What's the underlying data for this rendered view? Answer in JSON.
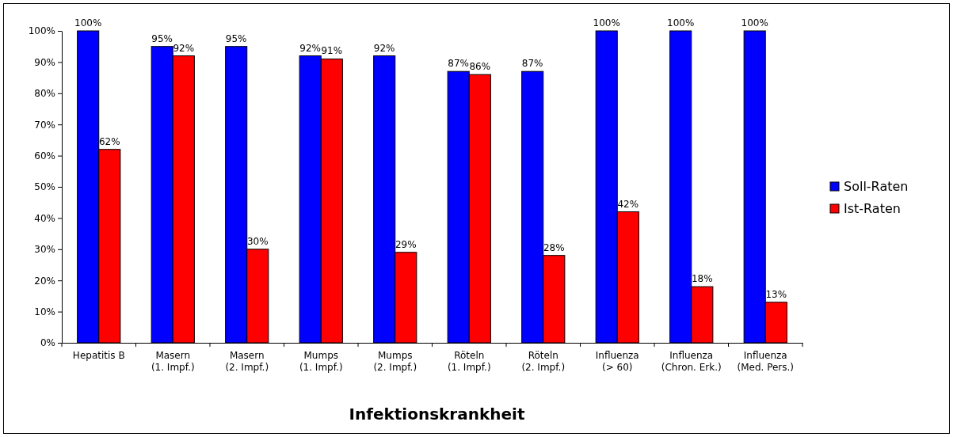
{
  "chart_data": {
    "type": "bar",
    "xlabel": "Infektionskrankheit",
    "categories": [
      "Hepatitis B",
      "Masern\n(1. Impf.)",
      "Masern\n(2. Impf.)",
      "Mumps\n(1. Impf.)",
      "Mumps\n(2. Impf.)",
      "Röteln\n(1. Impf.)",
      "Röteln\n(2. Impf.)",
      "Influenza\n(> 60)",
      "Influenza\n(Chron. Erk.)",
      "Influenza\n(Med. Pers.)"
    ],
    "series": [
      {
        "name": "Soll-Raten",
        "color": "#0000ff",
        "values": [
          100,
          95,
          95,
          92,
          92,
          87,
          87,
          100,
          100,
          100
        ],
        "value_labels": [
          "100%",
          "95%",
          "95%",
          "92%",
          "92%",
          "87%",
          "87%",
          "100%",
          "100%",
          "100%"
        ]
      },
      {
        "name": "Ist-Raten",
        "color": "#ff0000",
        "values": [
          62,
          92,
          30,
          91,
          29,
          86,
          28,
          42,
          18,
          13
        ],
        "value_labels": [
          "62%",
          "92%",
          "30%",
          "91%",
          "29%",
          "86%",
          "28%",
          "42%",
          "18%",
          "13%"
        ]
      }
    ],
    "ylim": [
      0,
      100
    ],
    "yticks": [
      {
        "value": 0,
        "label": "0%"
      },
      {
        "value": 10,
        "label": "10%"
      },
      {
        "value": 20,
        "label": "20%"
      },
      {
        "value": 30,
        "label": "30%"
      },
      {
        "value": 40,
        "label": "40%"
      },
      {
        "value": 50,
        "label": "50%"
      },
      {
        "value": 60,
        "label": "60%"
      },
      {
        "value": 70,
        "label": "70%"
      },
      {
        "value": 80,
        "label": "80%"
      },
      {
        "value": 90,
        "label": "90%"
      },
      {
        "value": 100,
        "label": "100%"
      }
    ],
    "legend": "right",
    "grid": false
  }
}
